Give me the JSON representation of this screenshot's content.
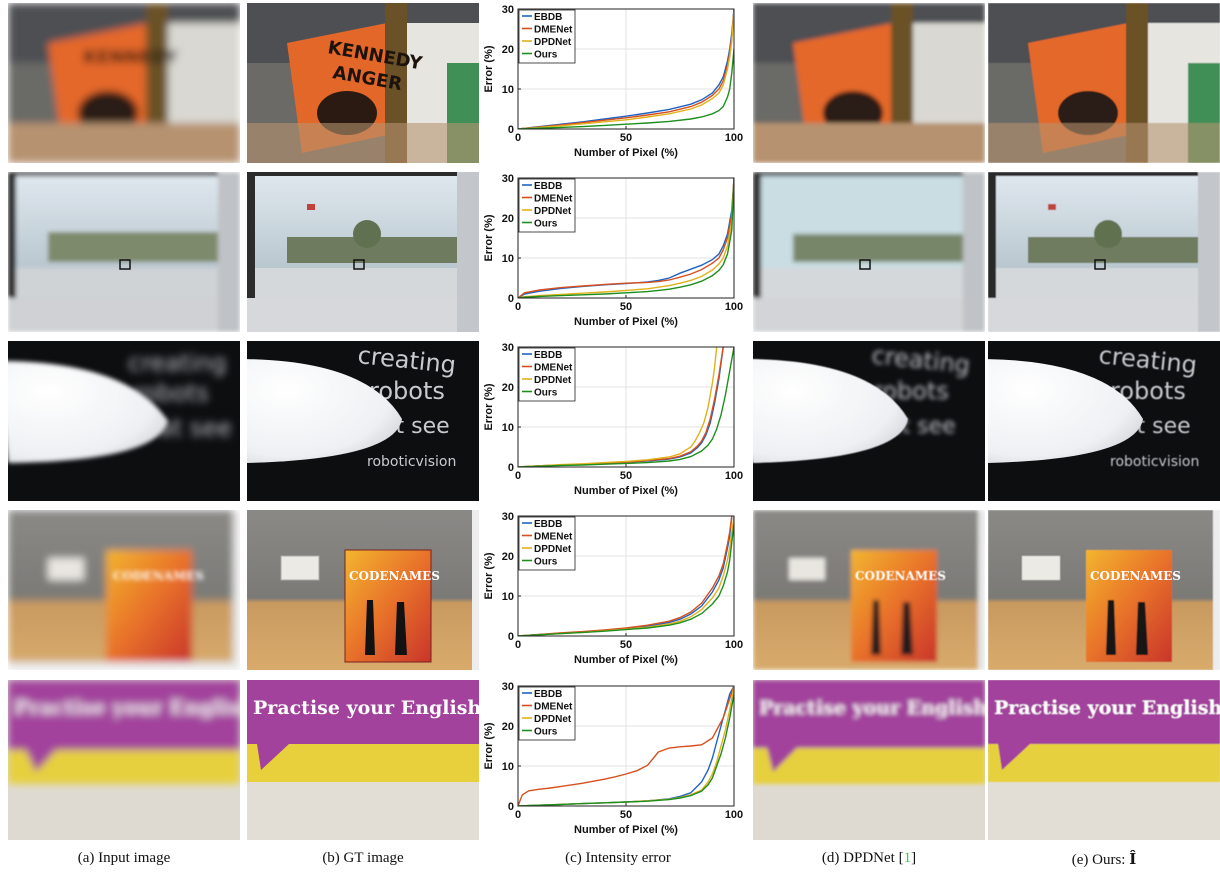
{
  "figure": {
    "captions": [
      {
        "text": "(a) Input image"
      },
      {
        "text": "(b) GT image"
      },
      {
        "text": "(c) Intensity error"
      },
      {
        "pre": "(d) DPDNet [",
        "cite": "1",
        "post": "]"
      },
      {
        "pre": "(e) Ours: ",
        "math": "Î"
      }
    ],
    "rows": [
      {
        "scene": "poster",
        "sign_text": [
          "KENNEDY",
          "ANGER"
        ]
      },
      {
        "scene": "window"
      },
      {
        "scene": "text-on-black",
        "words": [
          "creating",
          "robots",
          "at see",
          "roboticvision"
        ]
      },
      {
        "scene": "board-game",
        "box_title": "CODENAMES"
      },
      {
        "scene": "banner",
        "banner_text": "Practise your English at A"
      }
    ],
    "colors": {
      "EBDB": "#1f63c4",
      "DMENet": "#d6501f",
      "DPDNet": "#e0b11a",
      "Ours": "#1d8f1d",
      "poster_orange": "#e4672a",
      "banner_purple": "#a2429c",
      "banner_yellow": "#e7d03c"
    }
  },
  "chart_data": [
    {
      "type": "line",
      "xlabel": "Number of Pixel (%)",
      "ylabel": "Error (%)",
      "xlim": [
        0,
        100
      ],
      "ylim": [
        0,
        30
      ],
      "xticks": [
        0,
        50,
        100
      ],
      "yticks": [
        0,
        10,
        20,
        30
      ],
      "grid": true,
      "legend_position": "top-left",
      "series": [
        {
          "name": "EBDB",
          "x": [
            0,
            10,
            20,
            30,
            40,
            50,
            60,
            70,
            80,
            85,
            90,
            93,
            95,
            97,
            98,
            99,
            100
          ],
          "y": [
            0,
            0.6,
            1.2,
            1.8,
            2.5,
            3.2,
            4.0,
            4.9,
            6.2,
            7.3,
            9.0,
            11,
            13,
            17,
            20,
            24,
            30
          ]
        },
        {
          "name": "DMENet",
          "x": [
            0,
            10,
            20,
            30,
            40,
            50,
            60,
            70,
            80,
            85,
            90,
            93,
            95,
            97,
            98,
            99,
            100
          ],
          "y": [
            0,
            0.5,
            1.0,
            1.6,
            2.2,
            2.8,
            3.5,
            4.3,
            5.6,
            6.7,
            8.4,
            10,
            12,
            16,
            19,
            23,
            30
          ]
        },
        {
          "name": "DPDNet",
          "x": [
            0,
            10,
            20,
            30,
            40,
            50,
            60,
            70,
            80,
            85,
            90,
            93,
            95,
            97,
            98,
            99,
            100
          ],
          "y": [
            0,
            0.4,
            0.8,
            1.3,
            1.8,
            2.3,
            3.0,
            3.8,
            5.0,
            6.0,
            7.6,
            9,
            11,
            15,
            18,
            22,
            30
          ]
        },
        {
          "name": "Ours",
          "x": [
            0,
            10,
            20,
            30,
            40,
            50,
            60,
            70,
            80,
            85,
            90,
            93,
            95,
            97,
            98,
            99,
            100
          ],
          "y": [
            0,
            0.2,
            0.4,
            0.6,
            0.9,
            1.2,
            1.5,
            1.9,
            2.5,
            3.0,
            3.8,
            4.6,
            5.6,
            8,
            10,
            14,
            20
          ]
        }
      ]
    },
    {
      "type": "line",
      "xlabel": "Number of Pixel (%)",
      "ylabel": "Error (%)",
      "xlim": [
        0,
        100
      ],
      "ylim": [
        0,
        30
      ],
      "xticks": [
        0,
        50,
        100
      ],
      "yticks": [
        0,
        10,
        20,
        30
      ],
      "grid": true,
      "legend_position": "top-left",
      "series": [
        {
          "name": "EBDB",
          "x": [
            0,
            3,
            10,
            20,
            30,
            40,
            50,
            60,
            65,
            70,
            75,
            80,
            85,
            90,
            93,
            95,
            97,
            99,
            100
          ],
          "y": [
            0,
            1.0,
            1.7,
            2.4,
            2.9,
            3.3,
            3.6,
            4.0,
            4.4,
            5.0,
            6.2,
            7.2,
            8.2,
            9.6,
            11,
            13,
            16,
            22,
            30
          ]
        },
        {
          "name": "DMENet",
          "x": [
            0,
            3,
            10,
            20,
            30,
            40,
            50,
            60,
            65,
            70,
            75,
            80,
            85,
            90,
            93,
            95,
            97,
            99,
            100
          ],
          "y": [
            0,
            1.3,
            2.0,
            2.6,
            3.0,
            3.4,
            3.7,
            3.9,
            4.1,
            4.5,
            5.2,
            6.0,
            7.1,
            8.7,
            10,
            12,
            15,
            21,
            30
          ]
        },
        {
          "name": "DPDNet",
          "x": [
            0,
            3,
            10,
            20,
            30,
            40,
            50,
            60,
            65,
            70,
            75,
            80,
            85,
            90,
            93,
            95,
            97,
            99,
            100
          ],
          "y": [
            0,
            0.3,
            0.6,
            0.9,
            1.2,
            1.5,
            1.9,
            2.3,
            2.7,
            3.1,
            3.7,
            4.4,
            5.4,
            7.0,
            8.5,
            10,
            13,
            19,
            30
          ]
        },
        {
          "name": "Ours",
          "x": [
            0,
            3,
            10,
            20,
            30,
            40,
            50,
            60,
            65,
            70,
            75,
            80,
            85,
            90,
            93,
            95,
            97,
            99,
            100
          ],
          "y": [
            0,
            0.2,
            0.4,
            0.6,
            0.8,
            1.0,
            1.3,
            1.6,
            1.9,
            2.2,
            2.7,
            3.3,
            4.2,
            5.6,
            6.9,
            8.3,
            11,
            17,
            30
          ]
        }
      ]
    },
    {
      "type": "line",
      "xlabel": "Number of Pixel (%)",
      "ylabel": "Error (%)",
      "xlim": [
        0,
        100
      ],
      "ylim": [
        0,
        30
      ],
      "xticks": [
        0,
        50,
        100
      ],
      "yticks": [
        0,
        10,
        20,
        30
      ],
      "grid": true,
      "legend_position": "top-left",
      "series": [
        {
          "name": "EBDB",
          "x": [
            0,
            10,
            20,
            30,
            40,
            50,
            60,
            70,
            75,
            80,
            83,
            85,
            87,
            89,
            91,
            93,
            95
          ],
          "y": [
            0,
            0.3,
            0.5,
            0.7,
            0.9,
            1.2,
            1.5,
            2.0,
            2.5,
            3.5,
            4.8,
            6.0,
            8.0,
            11,
            16,
            22,
            30
          ]
        },
        {
          "name": "DMENet",
          "x": [
            0,
            10,
            20,
            30,
            40,
            50,
            60,
            70,
            75,
            80,
            83,
            85,
            87,
            89,
            91,
            93,
            95
          ],
          "y": [
            0,
            0.3,
            0.5,
            0.7,
            0.9,
            1.2,
            1.6,
            2.1,
            2.7,
            3.8,
            5.2,
            6.5,
            8.6,
            12,
            17,
            23,
            30
          ]
        },
        {
          "name": "DPDNet",
          "x": [
            0,
            10,
            20,
            30,
            40,
            50,
            60,
            70,
            75,
            80,
            82,
            84,
            86,
            88,
            90,
            91,
            92
          ],
          "y": [
            0,
            0.3,
            0.6,
            0.8,
            1.1,
            1.4,
            1.8,
            2.5,
            3.3,
            5.0,
            6.5,
            8.5,
            11,
            15,
            21,
            25,
            30
          ]
        },
        {
          "name": "Ours",
          "x": [
            0,
            10,
            20,
            30,
            40,
            50,
            60,
            70,
            75,
            80,
            85,
            88,
            90,
            92,
            94,
            96,
            98,
            100
          ],
          "y": [
            0,
            0.2,
            0.4,
            0.5,
            0.7,
            0.9,
            1.1,
            1.5,
            1.9,
            2.6,
            4.0,
            5.5,
            7.0,
            9.5,
            13,
            18,
            24,
            30
          ]
        }
      ]
    },
    {
      "type": "line",
      "xlabel": "Number of Pixel (%)",
      "ylabel": "Error (%)",
      "xlim": [
        0,
        100
      ],
      "ylim": [
        0,
        30
      ],
      "xticks": [
        0,
        50,
        100
      ],
      "yticks": [
        0,
        10,
        20,
        30
      ],
      "grid": true,
      "legend_position": "top-left",
      "series": [
        {
          "name": "EBDB",
          "x": [
            0,
            10,
            20,
            30,
            40,
            50,
            60,
            70,
            75,
            80,
            85,
            90,
            93,
            95,
            97,
            98,
            99
          ],
          "y": [
            0,
            0.4,
            0.7,
            1.0,
            1.4,
            1.9,
            2.5,
            3.4,
            4.2,
            5.5,
            7.5,
            11,
            14,
            17,
            22,
            25,
            30
          ]
        },
        {
          "name": "DMENet",
          "x": [
            0,
            10,
            20,
            30,
            40,
            50,
            60,
            70,
            75,
            80,
            85,
            90,
            93,
            95,
            97,
            98,
            99
          ],
          "y": [
            0,
            0.4,
            0.8,
            1.1,
            1.5,
            2.0,
            2.7,
            3.7,
            4.6,
            6.0,
            8.2,
            12,
            15,
            18,
            23,
            26,
            30
          ]
        },
        {
          "name": "DPDNet",
          "x": [
            0,
            10,
            20,
            30,
            40,
            50,
            60,
            70,
            75,
            80,
            85,
            90,
            93,
            95,
            97,
            98,
            100
          ],
          "y": [
            0,
            0.3,
            0.6,
            0.9,
            1.3,
            1.7,
            2.2,
            3.0,
            3.7,
            4.8,
            6.6,
            9.5,
            12,
            15,
            19,
            22,
            30
          ]
        },
        {
          "name": "Ours",
          "x": [
            0,
            10,
            20,
            30,
            40,
            50,
            60,
            70,
            75,
            80,
            85,
            90,
            93,
            95,
            97,
            98,
            100
          ],
          "y": [
            0,
            0.3,
            0.6,
            0.9,
            1.2,
            1.6,
            2.0,
            2.7,
            3.3,
            4.2,
            5.6,
            8.0,
            10,
            12.5,
            16,
            19,
            28
          ]
        }
      ]
    },
    {
      "type": "line",
      "xlabel": "Number of Pixel (%)",
      "ylabel": "Error (%)",
      "xlim": [
        0,
        100
      ],
      "ylim": [
        0,
        30
      ],
      "xticks": [
        0,
        50,
        100
      ],
      "yticks": [
        0,
        10,
        20,
        30
      ],
      "grid": true,
      "legend_position": "top-left",
      "series": [
        {
          "name": "EBDB",
          "x": [
            0,
            10,
            20,
            30,
            40,
            50,
            60,
            70,
            75,
            80,
            85,
            88,
            90,
            92,
            94,
            96,
            98,
            100
          ],
          "y": [
            0,
            0.2,
            0.4,
            0.6,
            0.8,
            1.0,
            1.3,
            1.8,
            2.4,
            3.3,
            6,
            9,
            12,
            16,
            20,
            24,
            28,
            30
          ]
        },
        {
          "name": "DMENet",
          "x": [
            0,
            2,
            5,
            10,
            15,
            20,
            25,
            30,
            35,
            40,
            45,
            50,
            55,
            60,
            65,
            70,
            75,
            80,
            85,
            90,
            95,
            100
          ],
          "y": [
            0,
            2.8,
            3.8,
            4.2,
            4.5,
            4.9,
            5.3,
            5.7,
            6.2,
            6.7,
            7.3,
            8.0,
            8.8,
            10.2,
            13.5,
            14.5,
            14.8,
            15.0,
            15.3,
            17,
            22,
            30
          ]
        },
        {
          "name": "DPDNet",
          "x": [
            0,
            10,
            20,
            30,
            40,
            50,
            60,
            70,
            75,
            80,
            85,
            88,
            90,
            92,
            94,
            96,
            98,
            100
          ],
          "y": [
            0,
            0.2,
            0.4,
            0.6,
            0.8,
            1.0,
            1.3,
            1.7,
            2.1,
            2.8,
            4,
            6,
            8,
            11,
            15,
            19,
            24,
            30
          ]
        },
        {
          "name": "Ours",
          "x": [
            0,
            10,
            20,
            30,
            40,
            50,
            60,
            70,
            75,
            80,
            85,
            88,
            90,
            92,
            94,
            96,
            98,
            100
          ],
          "y": [
            0,
            0.2,
            0.4,
            0.6,
            0.8,
            1.0,
            1.2,
            1.6,
            2.0,
            2.6,
            3.7,
            5.3,
            7,
            10,
            13,
            17,
            22,
            28
          ]
        }
      ]
    }
  ]
}
